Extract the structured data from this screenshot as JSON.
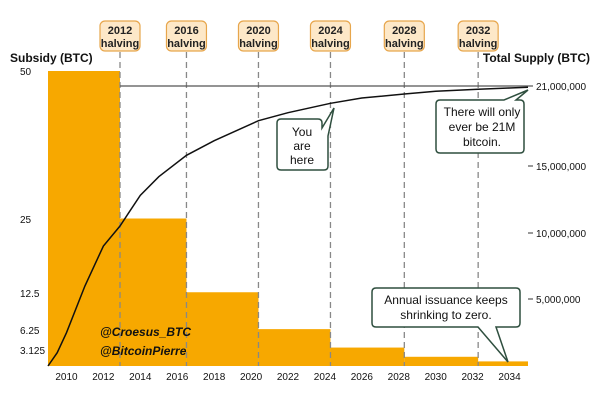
{
  "chart_data": {
    "type": "bar+line",
    "left_axis_title": "Subsidy (BTC)",
    "right_axis_title": "Total Supply (BTC)",
    "y_left_ticks": [
      "50",
      "25",
      "12.5",
      "6.25",
      "3.125"
    ],
    "y_left_tick_values": [
      50,
      25,
      12.5,
      6.25,
      3.125
    ],
    "y_left_lim": [
      0,
      50
    ],
    "y_right_ticks": [
      "21,000,000",
      "15,000,000",
      "10,000,000",
      "5,000,000"
    ],
    "y_right_tick_values": [
      21000000,
      15000000,
      10000000,
      5000000
    ],
    "y_right_lim": [
      0,
      21000000
    ],
    "x_ticks": [
      "2010",
      "2012",
      "2014",
      "2016",
      "2018",
      "2020",
      "2022",
      "2024",
      "2026",
      "2028",
      "2030",
      "2032",
      "2034"
    ],
    "x_tick_values": [
      2010,
      2012,
      2014,
      2016,
      2018,
      2020,
      2022,
      2024,
      2026,
      2028,
      2030,
      2032,
      2034
    ],
    "x_lim": [
      2009,
      2035
    ],
    "subsidy_steps": [
      {
        "start": 2009,
        "end": 2012.9,
        "value": 50
      },
      {
        "start": 2012.9,
        "end": 2016.5,
        "value": 25
      },
      {
        "start": 2016.5,
        "end": 2020.4,
        "value": 12.5
      },
      {
        "start": 2020.4,
        "end": 2024.3,
        "value": 6.25
      },
      {
        "start": 2024.3,
        "end": 2028.3,
        "value": 3.125
      },
      {
        "start": 2028.3,
        "end": 2032.3,
        "value": 1.5625
      },
      {
        "start": 2032.3,
        "end": 2035,
        "value": 0.78
      }
    ],
    "supply_series": {
      "x": [
        2009,
        2009.5,
        2010,
        2011,
        2012,
        2012.9,
        2014,
        2015,
        2016.5,
        2018,
        2020.4,
        2022,
        2024.3,
        2026,
        2028.3,
        2030,
        2032.3,
        2034,
        2035
      ],
      "y": [
        0,
        1000000,
        2500000,
        6000000,
        9000000,
        10500000,
        12800000,
        14200000,
        15800000,
        16900000,
        18400000,
        19000000,
        19700000,
        20100000,
        20400000,
        20600000,
        20750000,
        20850000,
        20900000
      ]
    },
    "cap_line_value": 21000000,
    "halvings": [
      {
        "label1": "2012",
        "label2": "halving",
        "year": 2012.9
      },
      {
        "label1": "2016",
        "label2": "halving",
        "year": 2016.5
      },
      {
        "label1": "2020",
        "label2": "halving",
        "year": 2020.4
      },
      {
        "label1": "2024",
        "label2": "halving",
        "year": 2024.3
      },
      {
        "label1": "2028",
        "label2": "halving",
        "year": 2028.3
      },
      {
        "label1": "2032",
        "label2": "halving",
        "year": 2032.3
      }
    ],
    "annotations": [
      {
        "lines": [
          "You",
          "are",
          "here"
        ]
      },
      {
        "lines": [
          "There will only",
          "ever be 21M",
          "bitcoin."
        ]
      },
      {
        "lines": [
          "Annual issuance keeps",
          "shrinking to zero."
        ]
      }
    ],
    "credits": [
      "@Croesus_BTC",
      "@BitcoinPierre"
    ],
    "colors": {
      "bar": "#f7a800",
      "line": "#111111",
      "dashed": "#888888",
      "cap": "#555555"
    }
  }
}
